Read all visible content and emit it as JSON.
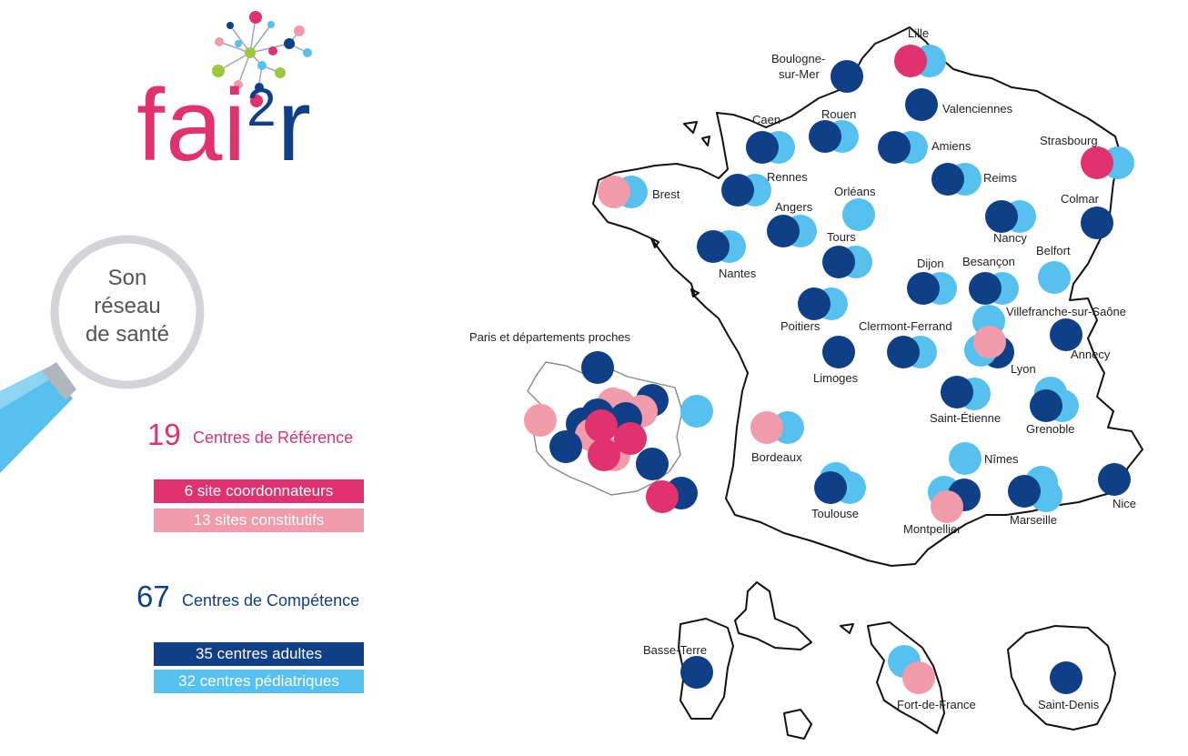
{
  "logo": {
    "text_fai": "fai",
    "text_two": "2",
    "text_r": "r"
  },
  "magnifier": {
    "line1": "Son",
    "line2": "réseau",
    "line3": "de santé"
  },
  "reference": {
    "count": "19",
    "label": "Centres de Référence",
    "coord": "6 site coordonnateurs",
    "const": "13 sites constitutifs"
  },
  "competence": {
    "count": "67",
    "label": "Centres de Compétence",
    "adult": "35 centres adultes",
    "ped": "32 centres pédiatriques"
  },
  "colors": {
    "coordinator": "#e0326e",
    "constitutive": "#f19bab",
    "adult": "#0e3f87",
    "pediatric": "#56c0ee"
  },
  "paris_title": "Paris et départements proches",
  "cities": [
    "Lille",
    "Boulogne-sur-Mer",
    "Valenciennes",
    "Caen",
    "Rouen",
    "Amiens",
    "Strasbourg",
    "Brest",
    "Rennes",
    "Reims",
    "Orléans",
    "Angers",
    "Colmar",
    "Nancy",
    "Tours",
    "Nantes",
    "Belfort",
    "Dijon",
    "Besançon",
    "Villefranche-sur-Saône",
    "Poitiers",
    "Clermont-Ferrand",
    "Lyon",
    "Annecy",
    "Limoges",
    "Saint-Étienne",
    "Grenoble",
    "Bordeaux",
    "Nîmes",
    "Toulouse",
    "Nice",
    "Montpellier",
    "Marseille",
    "Basse-Terre",
    "Fort-de-France",
    "Saint-Denis"
  ],
  "city_labels": {
    "lille": "Lille",
    "boulogne1": "Boulogne-",
    "boulogne2": "sur-Mer",
    "valenciennes": "Valenciennes",
    "caen": "Caen",
    "rouen": "Rouen",
    "amiens": "Amiens",
    "strasbourg": "Strasbourg",
    "brest": "Brest",
    "rennes": "Rennes",
    "reims": "Reims",
    "orleans": "Orléans",
    "angers": "Angers",
    "colmar": "Colmar",
    "nancy": "Nancy",
    "tours": "Tours",
    "nantes": "Nantes",
    "belfort": "Belfort",
    "dijon": "Dijon",
    "besancon": "Besançon",
    "villefranche": "Villefranche-sur-Saône",
    "poitiers": "Poitiers",
    "clermont": "Clermont-Ferrand",
    "lyon": "Lyon",
    "annecy": "Annecy",
    "limoges": "Limoges",
    "saintetienne": "Saint-Étienne",
    "grenoble": "Grenoble",
    "bordeaux": "Bordeaux",
    "nimes": "Nîmes",
    "toulouse": "Toulouse",
    "nice": "Nice",
    "montpellier": "Montpellier",
    "marseille": "Marseille",
    "basseterre": "Basse-Terre",
    "fortdefrance": "Fort-de-France",
    "saintdenis": "Saint-Denis"
  }
}
